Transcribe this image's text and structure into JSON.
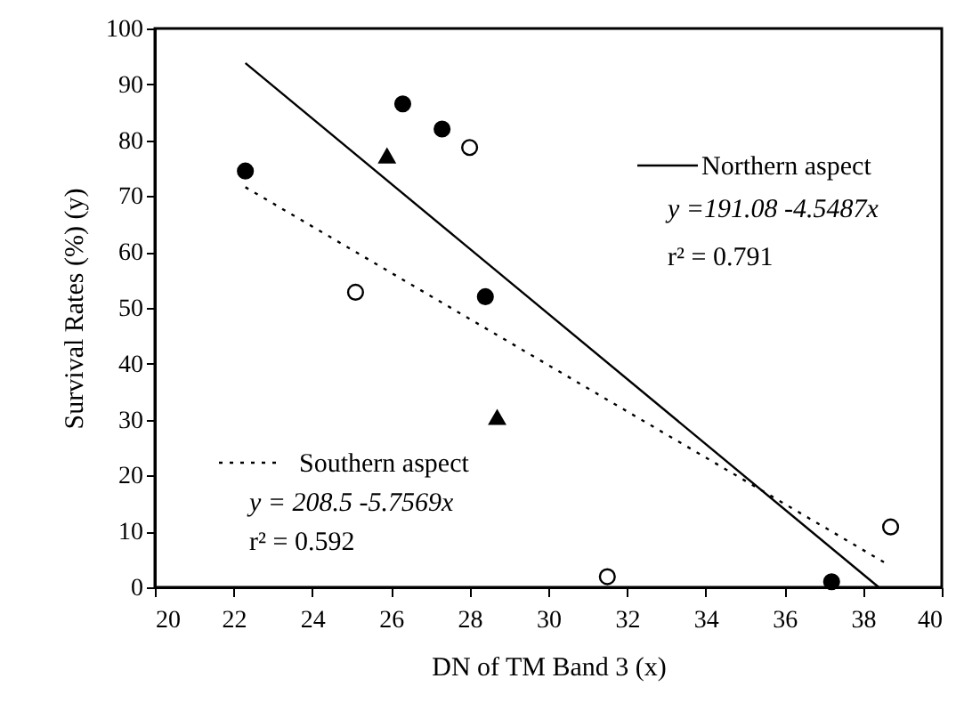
{
  "chart_data": {
    "type": "scatter",
    "xlabel": "DN of TM Band 3 (x)",
    "ylabel": "Survival Rates (%) (y)",
    "xlim": [
      20,
      40
    ],
    "xticks": [
      20,
      22,
      24,
      26,
      28,
      30,
      32,
      34,
      36,
      38,
      40
    ],
    "ylim": [
      0,
      100
    ],
    "yticks": [
      0,
      10,
      20,
      30,
      40,
      50,
      60,
      70,
      80,
      90,
      100
    ],
    "grid": false,
    "legend": "bottom left",
    "annotations": [
      "y =191.08 -4.5487x",
      "r² = 0.791",
      "y =  208.5 -5.7569x",
      "r² = 0.592"
    ],
    "series": [
      {
        "type": "scatter",
        "marker": "circle",
        "color": "#000000",
        "x": [
          22.3,
          26.3,
          27.3,
          28.4,
          37.2
        ],
        "values": [
          74.5,
          86.5,
          82,
          52,
          1
        ]
      },
      {
        "type": "scatter",
        "marker": "circle",
        "color": "#ffffff",
        "x": [
          25.1,
          28,
          31.5,
          38.7
        ],
        "values": [
          52.8,
          78.7,
          1.9,
          10.8
        ]
      },
      {
        "type": "scatter",
        "marker": "triangle",
        "color": "#000000",
        "x": [
          25.9,
          28.7
        ],
        "values": [
          77.2,
          30.4
        ]
      },
      {
        "type": "line",
        "name": "Northern aspect",
        "line_style": "solid",
        "color": "#000000",
        "x": [
          22.3,
          38.4
        ],
        "values": [
          93.8,
          0
        ]
      },
      {
        "type": "line",
        "name": "Southern aspect",
        "line_style": "dotted",
        "color": "#000000",
        "x": [
          22.3,
          38.6
        ],
        "values": [
          71.6,
          4.2
        ]
      }
    ]
  }
}
